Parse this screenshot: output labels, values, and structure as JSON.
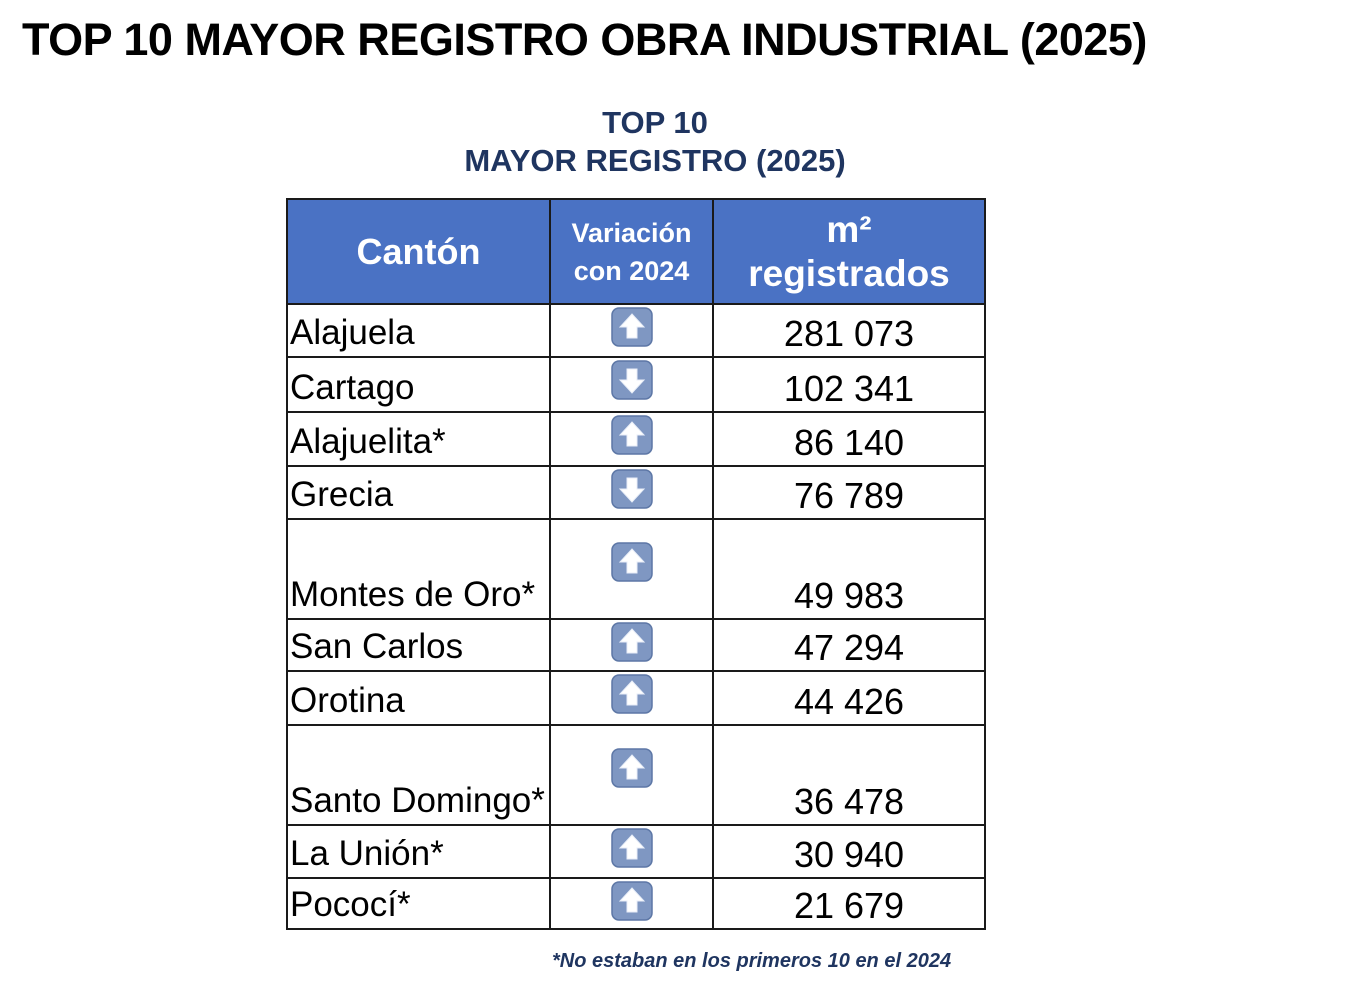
{
  "header": {
    "title": "TOP 10 MAYOR REGISTRO OBRA INDUSTRIAL (2025)",
    "subtitle_line1": "TOP 10",
    "subtitle_line2": "MAYOR REGISTRO (2025)"
  },
  "table": {
    "columns": [
      "Cantón",
      "Variación con 2024",
      "m²",
      "registrados"
    ],
    "rows": [
      {
        "canton": "Alajuela",
        "variation": "up",
        "m2": "281 073"
      },
      {
        "canton": "Cartago",
        "variation": "down",
        "m2": "102 341"
      },
      {
        "canton": "Alajuelita*",
        "variation": "up",
        "m2": "86 140"
      },
      {
        "canton": "Grecia",
        "variation": "down",
        "m2": "76 789"
      },
      {
        "canton": "Montes de Oro*",
        "variation": "up",
        "m2": "49 983"
      },
      {
        "canton": "San Carlos",
        "variation": "up",
        "m2": "47 294"
      },
      {
        "canton": "Orotina",
        "variation": "up",
        "m2": "44 426"
      },
      {
        "canton": "Santo Domingo*",
        "variation": "up",
        "m2": "36 478"
      },
      {
        "canton": "La Unión*",
        "variation": "up",
        "m2": "30 940"
      },
      {
        "canton": "Pococí*",
        "variation": "up",
        "m2": "21 679"
      }
    ]
  },
  "footnote": "*No estaban en los primeros 10 en el 2024"
}
